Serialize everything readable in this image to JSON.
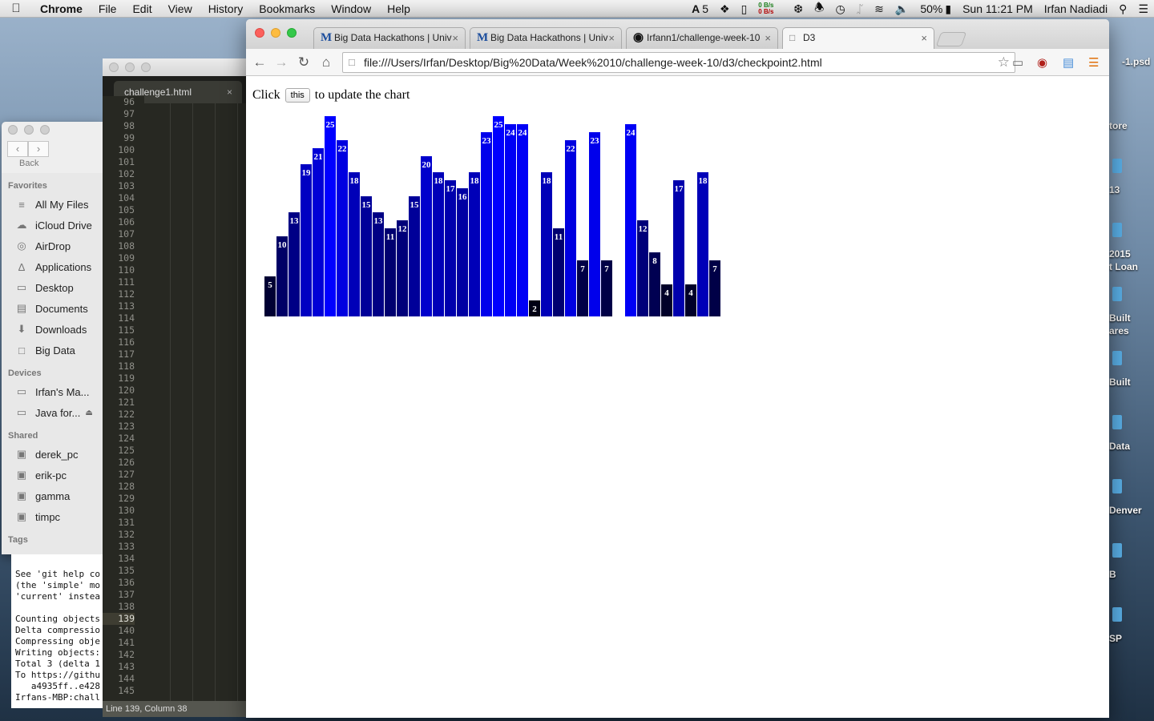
{
  "menubar": {
    "app_name": "Chrome",
    "menus": [
      "File",
      "Edit",
      "View",
      "History",
      "Bookmarks",
      "Window",
      "Help"
    ],
    "status": {
      "badge_count": "5",
      "net_up": "0 B/s",
      "net_down": "0 B/s",
      "battery": "50%",
      "clock": "Sun 11:21 PM",
      "user": "Irfan Nadiadi"
    }
  },
  "desktop": {
    "labels": [
      "-1.psd",
      "tore",
      "13",
      "2015",
      "t Loan",
      "Built",
      "ares",
      "Built",
      "Data",
      "Denver",
      "B",
      "SP"
    ]
  },
  "finder": {
    "back_label": "Back",
    "sections": [
      {
        "title": "Favorites",
        "items": [
          {
            "label": "All My Files",
            "icon": "all-files-icon"
          },
          {
            "label": "iCloud Drive",
            "icon": "cloud-icon"
          },
          {
            "label": "AirDrop",
            "icon": "airdrop-icon"
          },
          {
            "label": "Applications",
            "icon": "applications-icon"
          },
          {
            "label": "Desktop",
            "icon": "desktop-icon"
          },
          {
            "label": "Documents",
            "icon": "documents-icon"
          },
          {
            "label": "Downloads",
            "icon": "downloads-icon"
          },
          {
            "label": "Big Data",
            "icon": "folder-icon"
          }
        ]
      },
      {
        "title": "Devices",
        "items": [
          {
            "label": "Irfan's Ma...",
            "icon": "laptop-icon"
          },
          {
            "label": "Java for...",
            "icon": "disk-icon"
          }
        ]
      },
      {
        "title": "Shared",
        "items": [
          {
            "label": "derek_pc",
            "icon": "computer-icon"
          },
          {
            "label": "erik-pc",
            "icon": "computer-icon"
          },
          {
            "label": "gamma",
            "icon": "computer-icon"
          },
          {
            "label": "timpc",
            "icon": "computer-icon"
          }
        ]
      },
      {
        "title": "Tags",
        "items": []
      }
    ]
  },
  "terminal": {
    "lines": [
      "See 'git help co",
      "(the 'simple' mo",
      "'current' instea",
      "",
      "Counting objects",
      "Delta compressio",
      "Compressing obje",
      "Writing objects:",
      "Total 3 (delta 1",
      "To https://githu",
      "   a4935ff..e428",
      "Irfans-MBP:chall"
    ]
  },
  "editor": {
    "tab_title": "challenge1.html",
    "line_numbers": [
      "96",
      "97",
      "98",
      "99",
      "100",
      "101",
      "102",
      "103",
      "104",
      "105",
      "106",
      "107",
      "108",
      "109",
      "110",
      "111",
      "112",
      "113",
      "114",
      "115",
      "116",
      "117",
      "118",
      "119",
      "120",
      "121",
      "122",
      "123",
      "124",
      "125",
      "126",
      "127",
      "128",
      "129",
      "130",
      "131",
      "132",
      "133",
      "134",
      "135",
      "136",
      "137",
      "138",
      "139",
      "140",
      "141",
      "142",
      "143",
      "144",
      "145"
    ],
    "current_line": "139",
    "status": "Line 139, Column 38"
  },
  "browser": {
    "tabs": [
      {
        "title": "Big Data Hackathons | Univ",
        "favicon": "M",
        "active": false
      },
      {
        "title": "Big Data Hackathons | Univ",
        "favicon": "M",
        "active": false
      },
      {
        "title": "Irfann1/challenge-week-10",
        "favicon": "github-icon",
        "active": false
      },
      {
        "title": "D3",
        "favicon": "document-icon",
        "active": true
      }
    ],
    "url": "file:///Users/Irfan/Desktop/Big%20Data/Week%2010/challenge-week-10/d3/checkpoint2.html"
  },
  "page": {
    "text_before": "Click",
    "button_label": "this",
    "text_after": "to update the chart"
  },
  "colors": {
    "bar_max": "#0000ff",
    "bar_min": "#000000",
    "bar_label": "#ffffff"
  },
  "chart_data": {
    "type": "bar",
    "title": "",
    "xlabel": "",
    "ylabel": "",
    "ylim": [
      0,
      25
    ],
    "values": [
      5,
      10,
      13,
      19,
      21,
      25,
      22,
      18,
      15,
      13,
      11,
      12,
      15,
      20,
      18,
      17,
      16,
      18,
      23,
      25,
      24,
      24,
      2,
      18,
      11,
      22,
      7,
      23,
      7,
      0,
      24,
      12,
      8,
      4,
      17,
      4,
      18,
      7
    ]
  }
}
